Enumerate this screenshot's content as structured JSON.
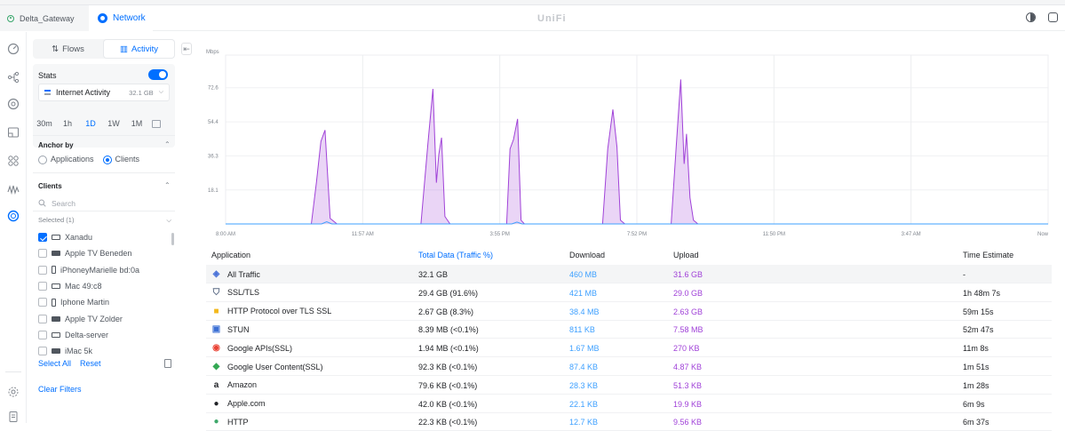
{
  "tabs": {
    "gateway": "Delta_Gateway",
    "network": "Network"
  },
  "brand": "UniFi",
  "icons": {
    "rail": [
      "dashboard-icon",
      "topology-icon",
      "devices-icon",
      "insights-icon",
      "clients-icon",
      "traffic-icon",
      "circle-icon",
      "settings-icon",
      "docs-icon"
    ],
    "top": [
      "theme-toggle-icon",
      "profile-icon"
    ]
  },
  "panel": {
    "tabs": {
      "flows": "Flows",
      "activity": "Activity"
    },
    "stats": {
      "label": "Stats",
      "enabled": true
    },
    "activity_select": {
      "label": "Internet Activity",
      "size": "32.1 GB"
    },
    "ranges": [
      "30m",
      "1h",
      "1D",
      "1W",
      "1M"
    ],
    "active_range": "1D",
    "anchor": {
      "title": "Anchor by",
      "options": [
        "Applications",
        "Clients"
      ],
      "selected": "Clients"
    },
    "clients": {
      "title": "Clients",
      "search_placeholder": "Search",
      "selected_label": "Selected (1)",
      "items": [
        {
          "name": "Xanadu",
          "checked": true
        },
        {
          "name": "Apple TV Beneden",
          "checked": false
        },
        {
          "name": "iPhoneyMarielle bd:0a",
          "checked": false
        },
        {
          "name": "Mac 49:c8",
          "checked": false
        },
        {
          "name": "Iphone Martin",
          "checked": false
        },
        {
          "name": "Apple TV Zolder",
          "checked": false
        },
        {
          "name": "Delta-server",
          "checked": false
        },
        {
          "name": "iMac 5k",
          "checked": false
        }
      ],
      "select_all": "Select All",
      "reset": "Reset"
    },
    "clear_filters": "Clear Filters"
  },
  "chart_data": {
    "type": "area",
    "ylabel": "Mbps",
    "yticks": [
      18.1,
      36.3,
      54.4,
      72.6
    ],
    "ylim": [
      0,
      90
    ],
    "xticks": [
      "8:00 AM",
      "11:57 AM",
      "3:55 PM",
      "7:52 PM",
      "11:50 PM",
      "3:47 AM",
      "Now"
    ],
    "xlim": [
      0,
      24
    ],
    "grid": true,
    "series": [
      {
        "x": [
          0,
          2.5,
          2.65,
          2.78,
          2.9,
          3.05,
          3.25,
          3.4,
          5.7,
          5.9,
          6.05,
          6.15,
          6.22,
          6.3,
          6.4,
          6.55,
          6.7,
          8.2,
          8.3,
          8.4,
          8.52,
          8.62,
          8.72,
          8.85,
          11.0,
          11.15,
          11.3,
          11.42,
          11.52,
          11.65,
          11.8,
          13.0,
          13.15,
          13.28,
          13.38,
          13.45,
          13.55,
          13.65,
          13.78,
          24
        ],
        "y": [
          0,
          0,
          22,
          44,
          50,
          3,
          0,
          0,
          0,
          42,
          72,
          22,
          37,
          46,
          4,
          0,
          0,
          0,
          40,
          45,
          56,
          2,
          0,
          0,
          0,
          40,
          61,
          41,
          2,
          0,
          0,
          0,
          42,
          77,
          32,
          48,
          14,
          2,
          0,
          0
        ]
      },
      {
        "x": [
          0,
          2.8,
          2.95,
          3.1,
          8.35,
          8.5,
          8.65,
          24
        ],
        "y": [
          0,
          0,
          1.2,
          0,
          0,
          1.0,
          0,
          0
        ]
      }
    ]
  },
  "table": {
    "headers": {
      "application": "Application",
      "total": "Total Data (Traffic %)",
      "download": "Download",
      "upload": "Upload",
      "time": "Time Estimate"
    },
    "rows": [
      {
        "icon": "stack-icon",
        "color": "#4a72d8",
        "app": "All Traffic",
        "total": "32.1 GB",
        "download": "460 MB",
        "upload": "31.6 GB",
        "time": "-"
      },
      {
        "icon": "shield-icon",
        "color": "#5b6b85",
        "app": "SSL/TLS",
        "total": "29.4 GB (91.6%)",
        "download": "421 MB",
        "upload": "29.0 GB",
        "time": "1h 48m 7s"
      },
      {
        "icon": "lock-icon",
        "color": "#f3b81c",
        "app": "HTTP Protocol over TLS SSL",
        "total": "2.67 GB (8.3%)",
        "download": "38.4 MB",
        "upload": "2.63 GB",
        "time": "59m 15s"
      },
      {
        "icon": "stun-icon",
        "color": "#3b6fd4",
        "app": "STUN",
        "total": "8.39 MB (<0.1%)",
        "download": "811 KB",
        "upload": "7.58 MB",
        "time": "52m 47s"
      },
      {
        "icon": "google-icon",
        "color": "#ea4335",
        "app": "Google APIs(SSL)",
        "total": "1.94 MB (<0.1%)",
        "download": "1.67 MB",
        "upload": "270 KB",
        "time": "11m 8s"
      },
      {
        "icon": "google-content-icon",
        "color": "#34a853",
        "app": "Google User Content(SSL)",
        "total": "92.3 KB (<0.1%)",
        "download": "87.4 KB",
        "upload": "4.87 KB",
        "time": "1m 51s"
      },
      {
        "icon": "amazon-icon",
        "color": "#212327",
        "app": "Amazon",
        "total": "79.6 KB (<0.1%)",
        "download": "28.3 KB",
        "upload": "51.3 KB",
        "time": "1m 28s"
      },
      {
        "icon": "apple-icon",
        "color": "#212327",
        "app": "Apple.com",
        "total": "42.0 KB (<0.1%)",
        "download": "22.1 KB",
        "upload": "19.9 KB",
        "time": "6m 9s"
      },
      {
        "icon": "globe-icon",
        "color": "#3ea86b",
        "app": "HTTP",
        "total": "22.3 KB (<0.1%)",
        "download": "12.7 KB",
        "upload": "9.56 KB",
        "time": "6m 37s"
      }
    ]
  },
  "colors": {
    "accent": "#006fff",
    "download": "#3ea0ff",
    "upload": "#a042d8"
  }
}
